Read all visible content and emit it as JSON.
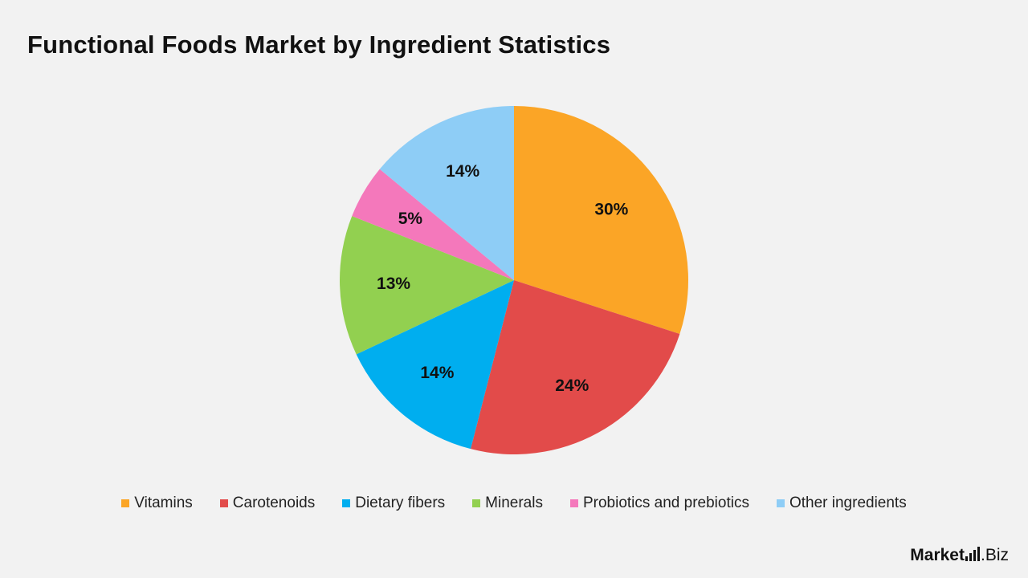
{
  "chart_data": {
    "type": "pie",
    "title": "Functional Foods Market by Ingredient Statistics",
    "categories": [
      "Vitamins",
      "Carotenoids",
      "Dietary fibers",
      "Minerals",
      "Probiotics and prebiotics",
      "Other ingredients"
    ],
    "values": [
      30,
      24,
      14,
      13,
      5,
      14
    ],
    "value_labels": [
      "30%",
      "24%",
      "14%",
      "13%",
      "5%",
      "14%"
    ],
    "colors": [
      "#fba526",
      "#e24b4a",
      "#00aeef",
      "#92d050",
      "#f478bb",
      "#8ecdf6"
    ],
    "start": "12 o'clock",
    "direction": "clockwise",
    "legend_position": "bottom"
  },
  "brand": {
    "name_bold": "Market",
    "name_light": ".Biz",
    "icon": "bar-chart-icon"
  }
}
